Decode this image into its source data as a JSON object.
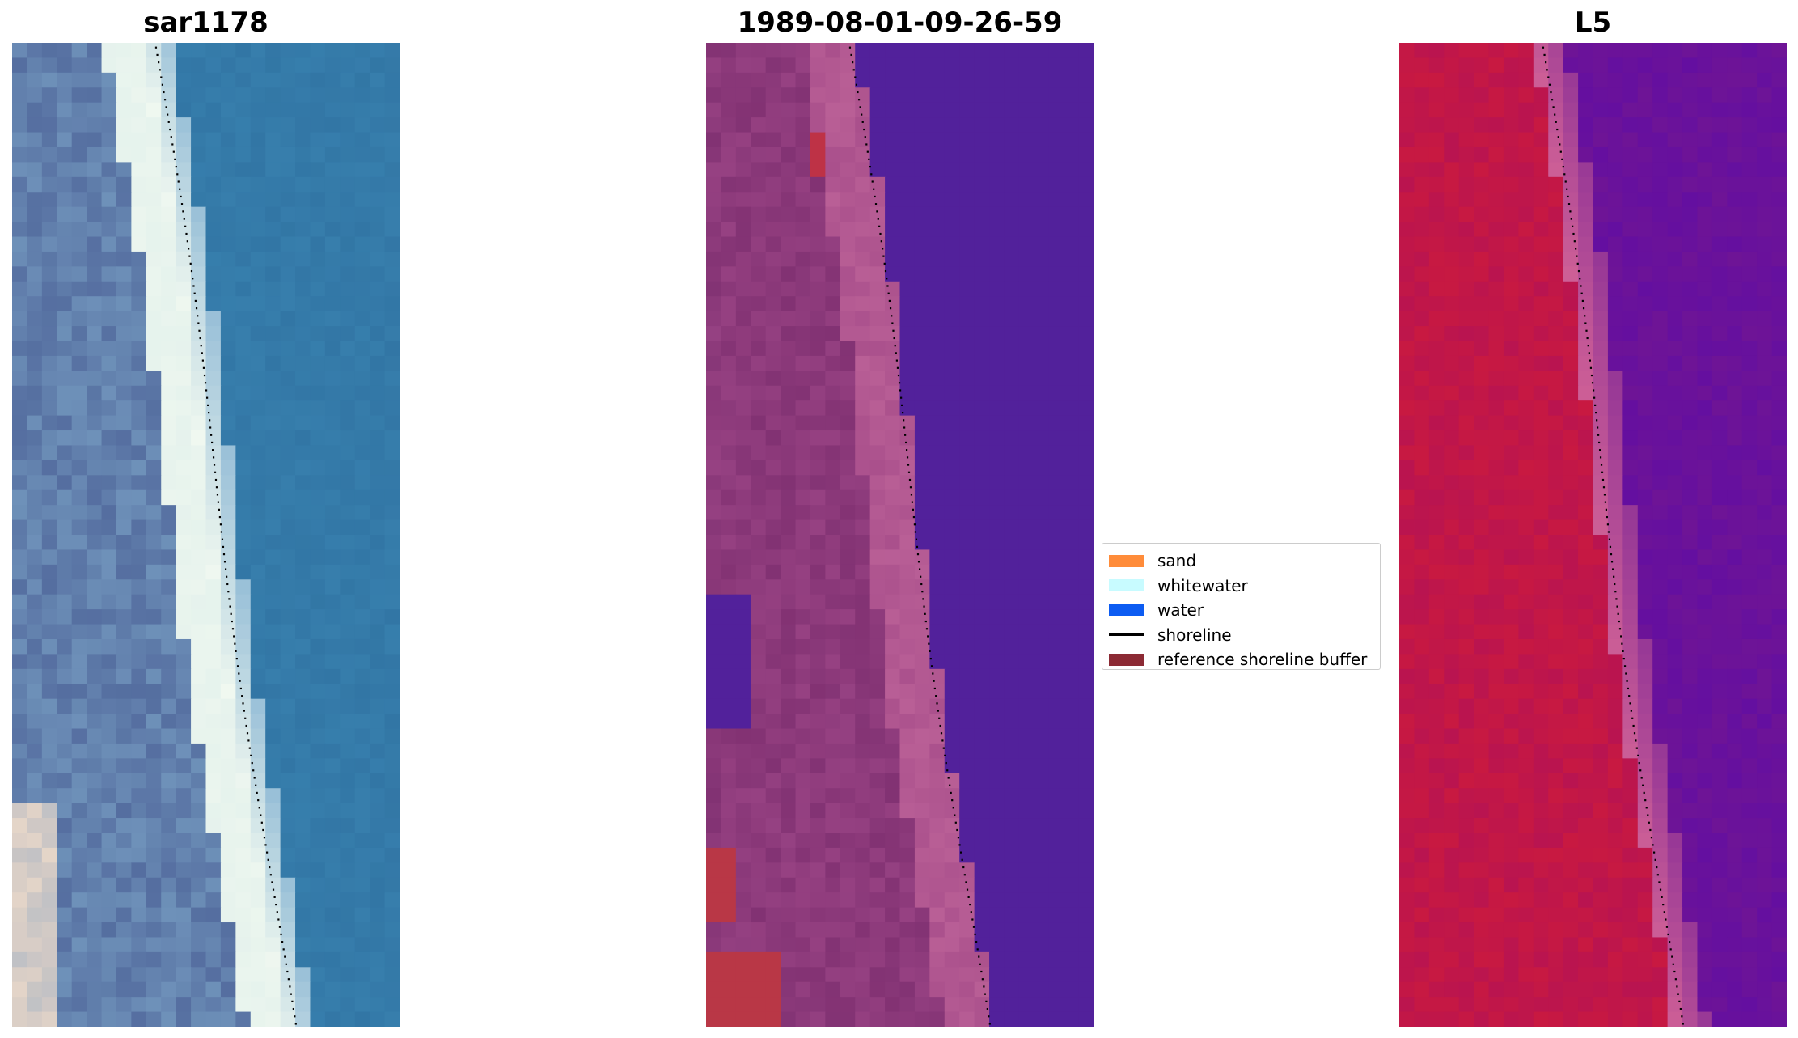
{
  "panels": [
    {
      "title": "sar1178",
      "kind": "rgb"
    },
    {
      "title": "1989-08-01-09-26-59",
      "kind": "classified"
    },
    {
      "title": "L5",
      "kind": "mndwi"
    }
  ],
  "legend": {
    "items": [
      {
        "label": "sand",
        "color": "#ff8c3a",
        "type": "patch"
      },
      {
        "label": "whitewater",
        "color": "#c8fbff",
        "type": "patch"
      },
      {
        "label": "water",
        "color": "#0d5cf2",
        "type": "patch"
      },
      {
        "label": "shoreline",
        "color": "#000000",
        "type": "line"
      },
      {
        "label": "reference shoreline buffer",
        "color": "#8c2a34",
        "type": "patch"
      }
    ]
  }
}
